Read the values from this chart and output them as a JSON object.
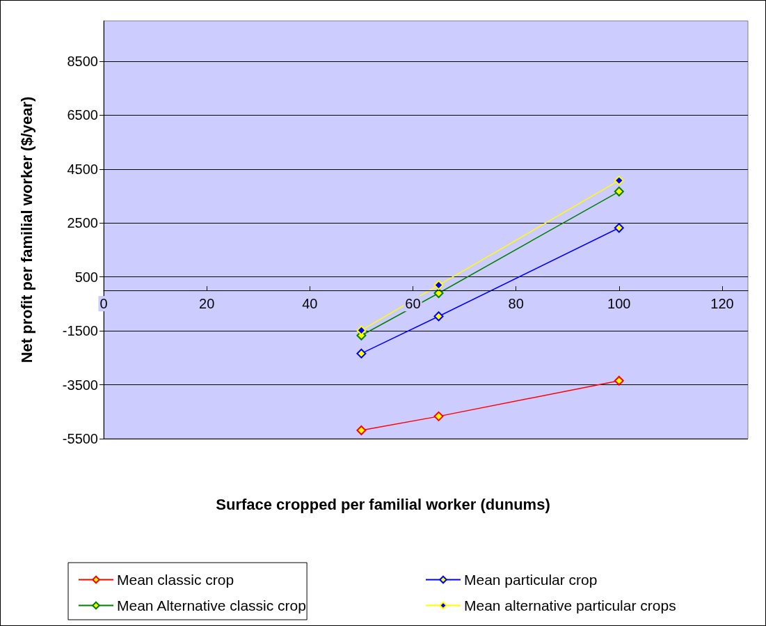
{
  "chart_data": {
    "type": "line",
    "xlabel": "Surface cropped per familial worker (dunums)",
    "ylabel": "Net profit per familial worker ($/year)",
    "x": [
      50,
      65,
      100
    ],
    "series": [
      {
        "name": "Mean classic crop",
        "color": "#ff0000",
        "values": [
          -5190,
          -4670,
          -3350
        ]
      },
      {
        "name": "Mean particular crop",
        "color": "#0000ff",
        "values": [
          -2340,
          -960,
          2320
        ]
      },
      {
        "name": "Mean Alternative classic crop",
        "color": "#008000",
        "values": [
          -1670,
          -100,
          3670
        ]
      },
      {
        "name": "Mean alternative particular crops",
        "color": "#ffff00",
        "values": [
          -1480,
          200,
          4080
        ]
      }
    ],
    "xlim": [
      0,
      125
    ],
    "xticks": [
      0,
      20,
      40,
      60,
      80,
      100,
      120
    ],
    "ylim": [
      -5500,
      10000
    ],
    "yticks": [
      -5500,
      -3500,
      -1500,
      500,
      2500,
      4500,
      6500,
      8500
    ],
    "grid": "y",
    "legend": "bottom",
    "marker": "diamond",
    "line_style": "solid"
  }
}
